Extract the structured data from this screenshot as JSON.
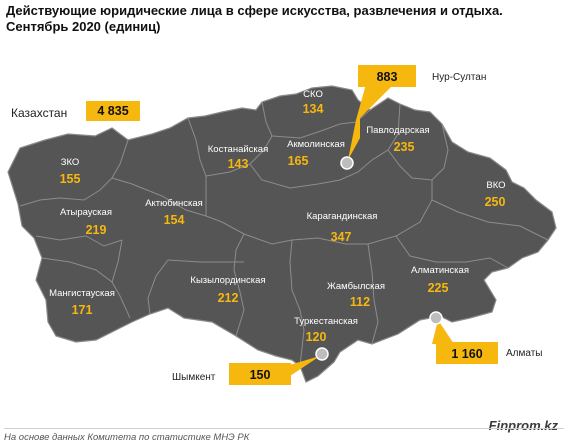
{
  "title": {
    "line1": "Действующие юридические лица в сфере искусства, развлечения и отдыха.",
    "line2": "Сентябрь 2020  (единиц)"
  },
  "total": {
    "label": "Казахстан",
    "value": "4 835"
  },
  "colors": {
    "region_fill": "#555555",
    "region_stroke": "#8a8a8a",
    "accent": "#f6b70f",
    "value_text": "#f6b70f"
  },
  "regions": {
    "zko": {
      "name": "ЗКО",
      "value": "155"
    },
    "aktobe": {
      "name": "Актюбинская",
      "value": "154"
    },
    "atyrau": {
      "name": "Атырауская",
      "value": "219"
    },
    "mangystau": {
      "name": "Мангистауская",
      "value": "171"
    },
    "kostanay": {
      "name": "Костанайская",
      "value": "143"
    },
    "sko": {
      "name": "СКО",
      "value": "134"
    },
    "akmola": {
      "name": "Акмолинская",
      "value": "165"
    },
    "pavlodar": {
      "name": "Павлодарская",
      "value": "235"
    },
    "vko": {
      "name": "ВКО",
      "value": "250"
    },
    "karaganda": {
      "name": "Карагандинская",
      "value": "347"
    },
    "kyzylorda": {
      "name": "Кызылординская",
      "value": "212"
    },
    "zhambyl": {
      "name": "Жамбылская",
      "value": "112"
    },
    "almaty_obl": {
      "name": "Алматинская",
      "value": "225"
    },
    "turkestan": {
      "name": "Туркестанская",
      "value": "120"
    }
  },
  "cities": {
    "nur_sultan": {
      "name": "Нур-Султан",
      "value": "883"
    },
    "almaty": {
      "name": "Алматы",
      "value": "1 160"
    },
    "shymkent": {
      "name": "Шымкент",
      "value": "150"
    }
  },
  "footer": {
    "brand": "Finprom.kz",
    "source": "На основе данных  Комитета по статистике МНЭ РК"
  }
}
